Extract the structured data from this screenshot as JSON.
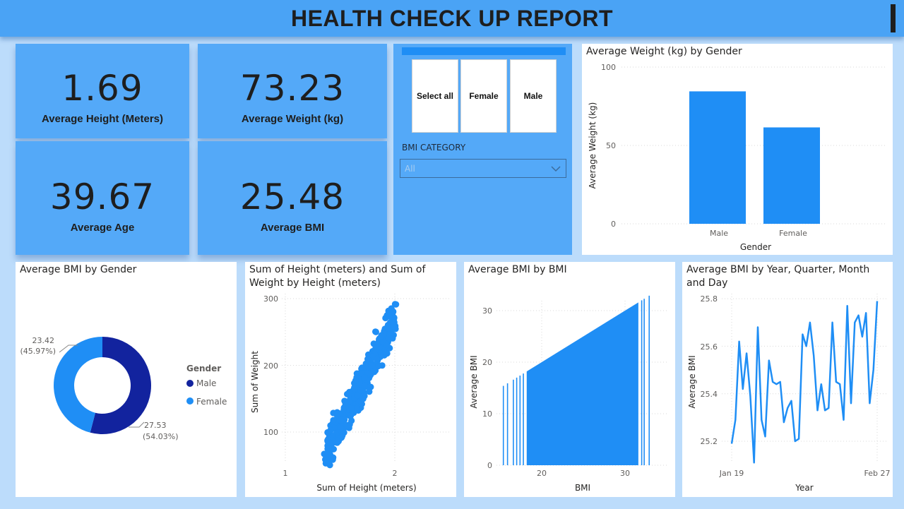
{
  "header": {
    "title": "HEALTH CHECK UP REPORT"
  },
  "kpis": {
    "height": {
      "value": "1.69",
      "label": "Average Height (Meters)"
    },
    "weight": {
      "value": "73.23",
      "label": "Average Weight (kg)"
    },
    "age": {
      "value": "39.67",
      "label": "Average Age"
    },
    "bmi": {
      "value": "25.48",
      "label": "Average BMI"
    }
  },
  "slicer": {
    "buttons": [
      "Select all",
      "Female",
      "Male"
    ],
    "bmi_label": "BMI CATEGORY",
    "bmi_value": "All",
    "chevron_icon": "chevron-down-icon"
  },
  "colors": {
    "primary": "#1f8ef5",
    "male_dark": "#12239e",
    "female_light": "#1f8ef5",
    "header": "#4aa3f5",
    "panel": "#54a9f8"
  },
  "charts": {
    "weight_by_gender": {
      "title": "Average Weight (kg) by Gender",
      "xlabel": "Gender",
      "ylabel": "Average Weight (kg)",
      "yticks": [
        "0",
        "50",
        "100"
      ]
    },
    "bmi_by_gender": {
      "title": "Average BMI by Gender",
      "legend_title": "Gender",
      "legend": [
        "Male",
        "Female"
      ],
      "label_female_value": "23.42",
      "label_female_pct": "(45.97%)",
      "label_male_value": "27.53",
      "label_male_pct": "(54.03%)"
    },
    "scatter": {
      "title_line1": "Sum of Height (meters) and Sum of",
      "title_line2": "Weight by Height (meters)",
      "xlabel": "Sum of Height (meters)",
      "ylabel": "Sum of Weight",
      "xticks": [
        "1",
        "2"
      ],
      "yticks": [
        "100",
        "200",
        "300"
      ]
    },
    "bmi_by_bmi": {
      "title": "Average BMI by BMI",
      "xlabel": "BMI",
      "ylabel": "Average BMI",
      "xticks": [
        "20",
        "30"
      ],
      "yticks": [
        "0",
        "10",
        "20",
        "30"
      ]
    },
    "bmi_timeline": {
      "title_line1": "Average BMI by Year, Quarter, Month",
      "title_line2": "and Day",
      "xlabel": "Year",
      "ylabel": "Average BMI",
      "xticks": [
        "Jan 19",
        "Feb 27"
      ],
      "yticks": [
        "25.2",
        "25.4",
        "25.6",
        "25.8"
      ]
    }
  },
  "chart_data": [
    {
      "type": "bar",
      "title": "Average Weight (kg) by Gender",
      "categories": [
        "Male",
        "Female"
      ],
      "values": [
        84.5,
        61.5
      ],
      "xlabel": "Gender",
      "ylabel": "Average Weight (kg)",
      "ylim": [
        0,
        100
      ]
    },
    {
      "type": "pie",
      "title": "Average BMI by Gender",
      "categories": [
        "Male",
        "Female"
      ],
      "values": [
        27.53,
        23.42
      ],
      "percents": [
        54.03,
        45.97
      ]
    },
    {
      "type": "scatter",
      "title": "Sum of Height (meters) and Sum of Weight by Height (meters)",
      "xlabel": "Sum of Height (meters)",
      "ylabel": "Sum of Weight",
      "xlim": [
        1,
        2.1
      ],
      "ylim": [
        50,
        310
      ],
      "trend": {
        "x_start": 1.37,
        "x_end": 2.0,
        "y_start": 68,
        "y_end": 270
      }
    },
    {
      "type": "bar",
      "title": "Average BMI by BMI",
      "xlabel": "BMI",
      "ylabel": "Average BMI",
      "xlim": [
        13,
        34
      ],
      "ylim": [
        0,
        35
      ],
      "sparse_bars": [
        15.4,
        15.9,
        16.6,
        17.0,
        17.4,
        17.8,
        32.0,
        32.3,
        32.9
      ],
      "dense_range": [
        18.2,
        31.6
      ]
    },
    {
      "type": "line",
      "title": "Average BMI by Year, Quarter, Month and Day",
      "xlabel": "Year",
      "ylabel": "Average BMI",
      "ylim": [
        25.1,
        25.83
      ],
      "x_start": "Jan 19",
      "x_end": "Feb 27",
      "values": [
        25.19,
        25.29,
        25.62,
        25.42,
        25.57,
        25.39,
        25.11,
        25.68,
        25.29,
        25.22,
        25.54,
        25.45,
        25.44,
        25.45,
        25.28,
        25.34,
        25.37,
        25.2,
        25.21,
        25.65,
        25.6,
        25.7,
        25.56,
        25.33,
        25.44,
        25.33,
        25.34,
        25.7,
        25.45,
        25.44,
        25.29,
        25.77,
        25.36,
        25.7,
        25.73,
        25.64,
        25.74,
        25.36,
        25.5,
        25.79
      ]
    }
  ]
}
